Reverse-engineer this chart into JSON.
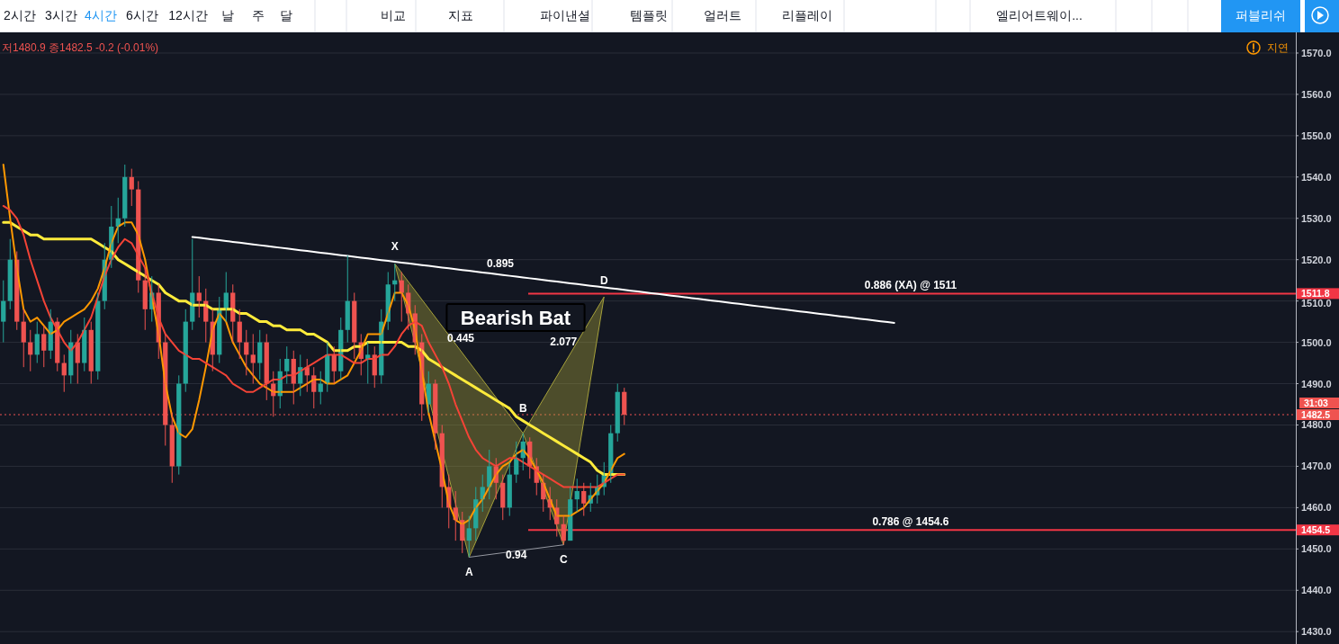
{
  "chart_data": {
    "type": "candlestick",
    "categories": [
      null,
      null,
      null,
      null,
      null,
      null,
      null,
      null,
      null,
      null,
      null,
      null,
      null,
      null,
      null,
      null,
      null,
      null,
      null,
      null,
      null,
      null,
      null,
      null,
      null,
      null,
      null,
      null,
      null,
      null,
      null,
      null,
      null,
      null,
      null,
      null,
      null,
      null,
      null,
      null,
      null,
      null,
      null,
      null,
      null,
      null,
      null,
      null,
      null,
      null,
      null,
      null,
      null,
      null,
      null,
      null,
      null,
      null,
      null,
      null,
      null,
      null,
      null,
      null,
      null,
      null,
      null,
      null,
      null,
      null,
      null,
      null,
      null,
      null,
      null,
      null,
      null,
      null,
      null,
      null,
      null,
      null,
      null,
      null,
      null,
      null,
      null,
      null,
      null,
      null,
      null,
      null,
      null,
      null,
      null,
      null,
      null,
      null,
      null,
      null,
      null,
      null,
      null,
      null,
      null,
      null,
      null,
      null,
      null,
      null,
      null,
      null,
      null,
      null,
      null,
      null,
      null,
      null,
      null,
      null,
      null,
      null,
      null,
      null,
      null,
      null,
      null,
      null,
      null,
      null,
      null,
      null,
      null,
      null,
      null,
      null,
      null,
      null,
      null,
      null,
      null,
      null,
      null,
      null,
      null,
      null,
      null,
      null,
      null,
      null,
      null,
      null,
      null,
      null,
      null,
      null,
      null,
      null,
      null,
      null,
      null,
      null,
      null,
      null,
      null,
      null,
      null,
      null,
      null,
      null,
      null,
      null,
      null,
      null,
      null,
      null,
      null,
      null,
      null,
      null,
      null,
      null,
      null,
      null,
      null,
      null,
      null,
      null,
      null,
      null,
      null,
      null
    ],
    "ohlc": [
      [
        1505,
        1515,
        1500,
        1510
      ],
      [
        1510,
        1525,
        1508,
        1520
      ],
      [
        1520,
        1522,
        1503,
        1505
      ],
      [
        1505,
        1508,
        1494,
        1500
      ],
      [
        1500,
        1503,
        1493,
        1497
      ],
      [
        1497,
        1505,
        1495,
        1502
      ],
      [
        1502,
        1504,
        1494,
        1498
      ],
      [
        1498,
        1508,
        1496,
        1505
      ],
      [
        1505,
        1506,
        1493,
        1495
      ],
      [
        1495,
        1497,
        1488,
        1492
      ],
      [
        1492,
        1503,
        1490,
        1500
      ],
      [
        1500,
        1502,
        1490,
        1495
      ],
      [
        1495,
        1506,
        1493,
        1503
      ],
      [
        1503,
        1505,
        1490,
        1493
      ],
      [
        1493,
        1512,
        1491,
        1510
      ],
      [
        1510,
        1524,
        1508,
        1520
      ],
      [
        1520,
        1533,
        1518,
        1528
      ],
      [
        1528,
        1535,
        1524,
        1530
      ],
      [
        1530,
        1543,
        1528,
        1540
      ],
      [
        1540,
        1542,
        1533,
        1537
      ],
      [
        1537,
        1539,
        1512,
        1515
      ],
      [
        1515,
        1518,
        1503,
        1508
      ],
      [
        1508,
        1516,
        1505,
        1512
      ],
      [
        1512,
        1514,
        1496,
        1500
      ],
      [
        1500,
        1502,
        1475,
        1480
      ],
      [
        1480,
        1483,
        1466,
        1470
      ],
      [
        1470,
        1492,
        1468,
        1490
      ],
      [
        1490,
        1508,
        1488,
        1505
      ],
      [
        1505,
        1525,
        1503,
        1512
      ],
      [
        1512,
        1516,
        1506,
        1510
      ],
      [
        1510,
        1513,
        1500,
        1505
      ],
      [
        1505,
        1508,
        1493,
        1497
      ],
      [
        1497,
        1511,
        1495,
        1508
      ],
      [
        1508,
        1517,
        1505,
        1512
      ],
      [
        1512,
        1514,
        1500,
        1505
      ],
      [
        1505,
        1508,
        1496,
        1500
      ],
      [
        1500,
        1503,
        1492,
        1497
      ],
      [
        1497,
        1502,
        1490,
        1495
      ],
      [
        1495,
        1503,
        1491,
        1500
      ],
      [
        1500,
        1502,
        1486,
        1490
      ],
      [
        1490,
        1493,
        1482,
        1487
      ],
      [
        1487,
        1496,
        1484,
        1493
      ],
      [
        1493,
        1499,
        1490,
        1496
      ],
      [
        1496,
        1498,
        1485,
        1490
      ],
      [
        1490,
        1497,
        1487,
        1494
      ],
      [
        1494,
        1496,
        1488,
        1492
      ],
      [
        1492,
        1494,
        1484,
        1488
      ],
      [
        1488,
        1493,
        1485,
        1490
      ],
      [
        1490,
        1500,
        1488,
        1497
      ],
      [
        1497,
        1499,
        1490,
        1493
      ],
      [
        1493,
        1506,
        1491,
        1503
      ],
      [
        1503,
        1521,
        1500,
        1510
      ],
      [
        1510,
        1512,
        1496,
        1500
      ],
      [
        1500,
        1502,
        1492,
        1496
      ],
      [
        1496,
        1500,
        1490,
        1497
      ],
      [
        1497,
        1499,
        1489,
        1492
      ],
      [
        1492,
        1508,
        1490,
        1505
      ],
      [
        1505,
        1517,
        1503,
        1514
      ],
      [
        1514,
        1519,
        1510,
        1515
      ],
      [
        1515,
        1517,
        1505,
        1512
      ],
      [
        1512,
        1514,
        1503,
        1507
      ],
      [
        1507,
        1509,
        1497,
        1500
      ],
      [
        1500,
        1502,
        1481,
        1485
      ],
      [
        1485,
        1493,
        1483,
        1490
      ],
      [
        1490,
        1491,
        1474,
        1478
      ],
      [
        1478,
        1480,
        1460,
        1465
      ],
      [
        1465,
        1468,
        1455,
        1460
      ],
      [
        1460,
        1464,
        1452,
        1457
      ],
      [
        1457,
        1459,
        1449,
        1452
      ],
      [
        1452,
        1458,
        1448,
        1455
      ],
      [
        1455,
        1465,
        1452,
        1462
      ],
      [
        1462,
        1468,
        1459,
        1465
      ],
      [
        1465,
        1474,
        1462,
        1470
      ],
      [
        1470,
        1472,
        1462,
        1466
      ],
      [
        1466,
        1468,
        1457,
        1460
      ],
      [
        1460,
        1471,
        1458,
        1468
      ],
      [
        1468,
        1476,
        1466,
        1472
      ],
      [
        1472,
        1478,
        1469,
        1476
      ],
      [
        1476,
        1477,
        1467,
        1470
      ],
      [
        1470,
        1472,
        1463,
        1466
      ],
      [
        1466,
        1468,
        1459,
        1462
      ],
      [
        1462,
        1465,
        1457,
        1460
      ],
      [
        1460,
        1462,
        1453,
        1456
      ],
      [
        1456,
        1458,
        1451,
        1452
      ],
      [
        1452,
        1465,
        1452,
        1462
      ],
      [
        1462,
        1467,
        1459,
        1464
      ],
      [
        1464,
        1466,
        1458,
        1461
      ],
      [
        1461,
        1466,
        1459,
        1463
      ],
      [
        1463,
        1468,
        1461,
        1465
      ],
      [
        1465,
        1471,
        1463,
        1468
      ],
      [
        1468,
        1480,
        1466,
        1478
      ],
      [
        1478,
        1490,
        1476,
        1488
      ],
      [
        1488,
        1489,
        1480,
        1482.5
      ],
      null,
      null,
      null,
      null,
      null,
      null,
      null,
      null,
      null,
      null,
      null,
      null,
      null,
      null,
      null,
      null,
      null,
      null,
      null,
      null,
      null,
      null,
      null,
      null,
      null,
      null,
      null,
      null,
      null,
      null,
      null,
      null,
      null,
      null,
      null,
      null,
      null,
      null,
      null,
      null,
      null,
      null,
      null,
      null,
      null,
      null,
      null,
      null,
      null,
      null,
      null,
      null,
      null,
      null,
      null,
      null,
      null,
      null,
      null,
      null,
      null,
      null,
      null,
      null,
      null,
      null,
      null,
      null,
      null,
      null,
      null,
      null,
      null,
      null,
      null,
      null,
      null,
      null,
      null,
      null,
      null,
      null,
      null,
      null,
      null,
      null,
      null,
      null,
      null,
      null,
      null,
      null,
      null,
      null,
      null,
      null,
      null,
      null,
      null
    ],
    "series": [
      {
        "type": "line",
        "color": "#ffeb3b",
        "values": [
          1529,
          1529,
          1528,
          1527,
          1526,
          1526,
          1525,
          1525,
          1525,
          1525,
          1525,
          1525,
          1525,
          1525,
          1524,
          1523,
          1522,
          1520,
          1519,
          1518,
          1517,
          1516,
          1515,
          1514,
          1512,
          1511,
          1510,
          1510,
          1509,
          1509,
          1509,
          1508,
          1508,
          1508,
          1508,
          1507,
          1507,
          1506,
          1505,
          1505,
          1504,
          1504,
          1503,
          1503,
          1503,
          1502,
          1502,
          1501,
          1500,
          1498,
          1498,
          1498,
          1499,
          1499,
          1500,
          1500,
          1500,
          1500,
          1500,
          1500,
          1499,
          1499,
          1498,
          1496,
          1495,
          1494,
          1493,
          1492,
          1491,
          1490,
          1489,
          1488,
          1487,
          1486,
          1485,
          1484,
          1482,
          1481,
          1480,
          1479,
          1478,
          1477,
          1476,
          1475,
          1474,
          1473,
          1472,
          1471,
          1469,
          1468,
          1468,
          1468,
          1468,
          null,
          null,
          null,
          null,
          null,
          null,
          null,
          null,
          null,
          null,
          null,
          null,
          null,
          null,
          null,
          null,
          null,
          null,
          null,
          null,
          null,
          null,
          null,
          null,
          null,
          null,
          null,
          null,
          null,
          null,
          null,
          null,
          null,
          null,
          null,
          null,
          null,
          null,
          null,
          null,
          null,
          null,
          null,
          null,
          null,
          null,
          null,
          null,
          null,
          null,
          null,
          null,
          null,
          null,
          null,
          null,
          null,
          null,
          null,
          null,
          null,
          null,
          null,
          null,
          null,
          null,
          null,
          null,
          null,
          null,
          null,
          null,
          null,
          null,
          null,
          null,
          null,
          null,
          null,
          null,
          null,
          null,
          null,
          null,
          null,
          null,
          null,
          null,
          null,
          null,
          null,
          null,
          null,
          null,
          null,
          null,
          null,
          null,
          null
        ]
      },
      {
        "type": "line",
        "color": "#ff9800",
        "values": [
          1543,
          1530,
          1518,
          1508,
          1505,
          1506,
          1504,
          1502,
          1503,
          1505,
          1506,
          1507,
          1508,
          1510,
          1513,
          1518,
          1524,
          1528,
          1529,
          1529,
          1526,
          1520,
          1511,
          1502,
          1490,
          1482,
          1478,
          1477,
          1479,
          1486,
          1494,
          1503,
          1507,
          1505,
          1500,
          1497,
          1494,
          1492,
          1490,
          1489,
          1488,
          1488,
          1488,
          1488,
          1489,
          1490,
          1491,
          1491,
          1490,
          1490,
          1491,
          1492,
          1495,
          1498,
          1502,
          1502,
          1502,
          1507,
          1512,
          1512,
          1509,
          1503,
          1493,
          1483,
          1476,
          1469,
          1461,
          1457,
          1456,
          1457,
          1460,
          1462,
          1465,
          1468,
          1470,
          1471,
          1473,
          1474,
          1472,
          1469,
          1466,
          1462,
          1458,
          1458,
          1458,
          1459,
          1460,
          1462,
          1464,
          1466,
          1469,
          1472,
          1473,
          null,
          null,
          null,
          null,
          null,
          null,
          null,
          null,
          null,
          null,
          null,
          null,
          null,
          null,
          null,
          null,
          null,
          null,
          null,
          null,
          null,
          null,
          null,
          null,
          null,
          null,
          null,
          null,
          null,
          null,
          null,
          null,
          null,
          null,
          null,
          null,
          null,
          null,
          null,
          null,
          null,
          null,
          null,
          null,
          null,
          null,
          null,
          null,
          null,
          null,
          null,
          null,
          null,
          null,
          null,
          null,
          null,
          null,
          null,
          null,
          null,
          null,
          null,
          null,
          null,
          null,
          null,
          null,
          null,
          null,
          null,
          null,
          null,
          null,
          null,
          null,
          null,
          null,
          null,
          null,
          null,
          null,
          null,
          null,
          null,
          null,
          null,
          null,
          null,
          null,
          null,
          null,
          null,
          null,
          null,
          null,
          null,
          null,
          null
        ]
      },
      {
        "type": "line",
        "color": "#f44336",
        "values": [
          1533,
          1532,
          1530,
          1526,
          1520,
          1515,
          1510,
          1506,
          1503,
          1500,
          1498,
          1500,
          1503,
          1506,
          1511,
          1516,
          1520,
          1523,
          1525,
          1524,
          1521,
          1518,
          1512,
          1506,
          1502,
          1500,
          1498,
          1497,
          1496,
          1496,
          1495,
          1494,
          1493,
          1492,
          1490,
          1489,
          1488,
          1488,
          1489,
          1490,
          1491,
          1491,
          1492,
          1492,
          1493,
          1494,
          1495,
          1496,
          1497,
          1497,
          1497,
          1496,
          1495,
          1495,
          1496,
          1496,
          1497,
          1497,
          1499,
          1502,
          1504,
          1505,
          1504,
          1500,
          1497,
          1494,
          1490,
          1485,
          1481,
          1477,
          1474,
          1472,
          1471,
          1470,
          1471,
          1472,
          1472,
          1471,
          1470,
          1469,
          1468,
          1467,
          1466,
          1465,
          1465,
          1465,
          1465,
          1465,
          1465,
          1466,
          1467,
          1468,
          1468,
          null,
          null,
          null,
          null,
          null,
          null,
          null,
          null,
          null,
          null,
          null,
          null,
          null,
          null,
          null,
          null,
          null,
          null,
          null,
          null,
          null,
          null,
          null,
          null,
          null,
          null,
          null,
          null,
          null,
          null,
          null,
          null,
          null,
          null,
          null,
          null,
          null,
          null,
          null,
          null,
          null,
          null,
          null,
          null,
          null,
          null,
          null,
          null,
          null,
          null,
          null,
          null,
          null,
          null,
          null,
          null,
          null,
          null,
          null,
          null,
          null,
          null,
          null,
          null,
          null,
          null,
          null,
          null,
          null,
          null,
          null,
          null,
          null,
          null,
          null,
          null,
          null,
          null,
          null,
          null,
          null,
          null,
          null,
          null,
          null,
          null,
          null,
          null,
          null,
          null,
          null,
          null,
          null,
          null,
          null,
          null,
          null,
          null,
          null
        ]
      },
      {
        "type": "area",
        "color": "#a6a13a",
        "values": [
          null,
          null,
          null,
          null,
          null,
          null,
          null,
          null,
          null,
          null,
          null,
          null,
          null,
          null,
          null,
          null,
          null,
          null,
          null,
          null,
          null,
          null,
          null,
          null,
          null,
          null,
          null,
          null,
          null,
          null,
          null,
          null,
          null,
          null,
          null,
          null,
          null,
          null,
          null,
          null,
          null,
          null,
          null,
          null,
          null,
          null,
          null,
          null,
          null,
          null,
          null,
          null,
          null,
          null,
          null,
          null,
          null,
          null,
          1519,
          null,
          null,
          null,
          null,
          null,
          null,
          null,
          null,
          null,
          null,
          1448,
          null,
          null,
          null,
          null,
          null,
          null,
          null,
          1478,
          null,
          null,
          null,
          null,
          null,
          1451,
          null,
          null,
          null,
          null,
          null,
          1511,
          null,
          null,
          null,
          null,
          null,
          null,
          null,
          null,
          null,
          null,
          null,
          null,
          null,
          null,
          null,
          null,
          null,
          null,
          null,
          null,
          null,
          null,
          null,
          null,
          null,
          null,
          null,
          null,
          null,
          null,
          null,
          null,
          null,
          null,
          null,
          null,
          null,
          null,
          null,
          null,
          null,
          null,
          null,
          null,
          null,
          null,
          null,
          null,
          null,
          null,
          null,
          null,
          null,
          null,
          null,
          null,
          null,
          null,
          null,
          null,
          null,
          null,
          null,
          null,
          null,
          null,
          null,
          null,
          null,
          null,
          null,
          null,
          null,
          null,
          null,
          null,
          null,
          null,
          null,
          null,
          null,
          null,
          null,
          null,
          null,
          null,
          null,
          null,
          null,
          null,
          null,
          null,
          null,
          null,
          null,
          null,
          null,
          null,
          null,
          null,
          null,
          null
        ]
      },
      {
        "type": "line",
        "color": "#ffffff",
        "values": [
          null,
          null,
          null,
          null,
          null,
          null,
          null,
          null,
          null,
          null,
          null,
          null,
          null,
          null,
          null,
          null,
          null,
          null,
          null,
          null,
          null,
          null,
          null,
          null,
          null,
          null,
          null,
          null,
          1525.5,
          1525.3,
          1525.1,
          1524.9,
          1524.7,
          1524.5,
          1524.3,
          1524.1,
          1523.9,
          1523.7,
          1523.5,
          1523.3,
          1523.1,
          1522.9,
          1522.7,
          1522.5,
          1522.3,
          1522.1,
          1521.9,
          1521.7,
          1521.5,
          1521.3,
          1521.1,
          1520.9,
          1520.7,
          1520.5,
          1520.3,
          1520.1,
          1519.9,
          1519.7,
          1519.5,
          1519.3,
          1519.1,
          1518.9,
          1518.7,
          1518.5,
          1518.3,
          1518.1,
          1517.9,
          1517.7,
          1517.5,
          1517.3,
          1517.1,
          1516.9,
          1516.7,
          1516.5,
          1516.3,
          1516.1,
          1515.9,
          1515.7,
          1515.5,
          1515.3,
          1515.1,
          1514.9,
          1514.7,
          1514.5,
          1514.3,
          1514.1,
          1513.9,
          1513.7,
          1513.5,
          1513.3,
          1513.1,
          1512.9,
          1512.7,
          1512.5,
          1512.3,
          1512.1,
          1511.9,
          1511.7,
          1511.5,
          1511.3,
          1511.1,
          1510.9,
          1510.7,
          1510.5,
          1510.3,
          1510.1,
          1509.9,
          1509.7,
          1509.5,
          1509.3,
          1509.1,
          1508.9,
          1508.7,
          1508.5,
          1508.3,
          1508.1,
          1507.9,
          1507.7,
          1507.5,
          1507.3,
          1507.1,
          1506.9,
          1506.7,
          1506.5,
          1506.3,
          1506.1,
          1505.9,
          1505.7,
          1505.5,
          1505.3,
          1505.1,
          1504.9,
          1504.7,
          null,
          null,
          null,
          null,
          null,
          null,
          null,
          null,
          null,
          null,
          null,
          null,
          null,
          null,
          null,
          null,
          null,
          null,
          null,
          null,
          null,
          null,
          null,
          null,
          null,
          null,
          null,
          null,
          null,
          null,
          null,
          null,
          null,
          null,
          null,
          null,
          null,
          null,
          null,
          null,
          null,
          null,
          null,
          null,
          null,
          null,
          null,
          null,
          null,
          null,
          null,
          null,
          null,
          null,
          null,
          null,
          null,
          null,
          null
        ]
      }
    ],
    "ylim": [
      1427,
      1575
    ],
    "yticks": [
      {
        "value": 1430,
        "label": "1430.0"
      },
      {
        "value": 1440,
        "label": "1440.0"
      },
      {
        "value": 1450,
        "label": "1450.0"
      },
      {
        "value": 1460,
        "label": "1460.0"
      },
      {
        "value": 1470,
        "label": "1470.0"
      },
      {
        "value": 1480,
        "label": "1480.0"
      },
      {
        "value": 1490,
        "label": "1490.0"
      },
      {
        "value": 1500,
        "label": "1500.0"
      },
      {
        "value": 1510,
        "label": "1510.0"
      },
      {
        "value": 1520,
        "label": "1520.0"
      },
      {
        "value": 1530,
        "label": "1530.0"
      },
      {
        "value": 1540,
        "label": "1540.0"
      },
      {
        "value": 1550,
        "label": "1550.0"
      },
      {
        "value": 1560,
        "label": "1560.0"
      },
      {
        "value": 1570,
        "label": "1570.0"
      }
    ],
    "ref_lines": [
      {
        "axis": "y",
        "value": 1511.8,
        "label": "0.886 (XA) @ 1511",
        "color": "#f23645"
      },
      {
        "axis": "y",
        "value": 1454.6,
        "label": "0.786 @ 1454.6",
        "color": "#f23645"
      },
      {
        "axis": "y",
        "value": 1482.5,
        "label": null,
        "color": "#ef5350",
        "line_style": "dotted"
      }
    ],
    "annotations": [
      "저1480.9 종1482.5 -0.2 (-0.01%)",
      "지연",
      "31:03",
      "X",
      "A",
      "B",
      "C",
      "D",
      "0.895",
      "0.445",
      "2.077",
      "0.94",
      "Bearish Bat",
      "2시간",
      "3시간",
      "4시간",
      "6시간",
      "12시간",
      "날",
      "주",
      "달",
      "비교",
      "지표",
      "파이낸셜",
      "템플릿",
      "얼러트",
      "리플레이",
      "엘리어트웨이...",
      "퍼블리쉬",
      "1511.8",
      "1454.5",
      "1482.5"
    ],
    "grid": "y",
    "tick_labels": "y"
  }
}
